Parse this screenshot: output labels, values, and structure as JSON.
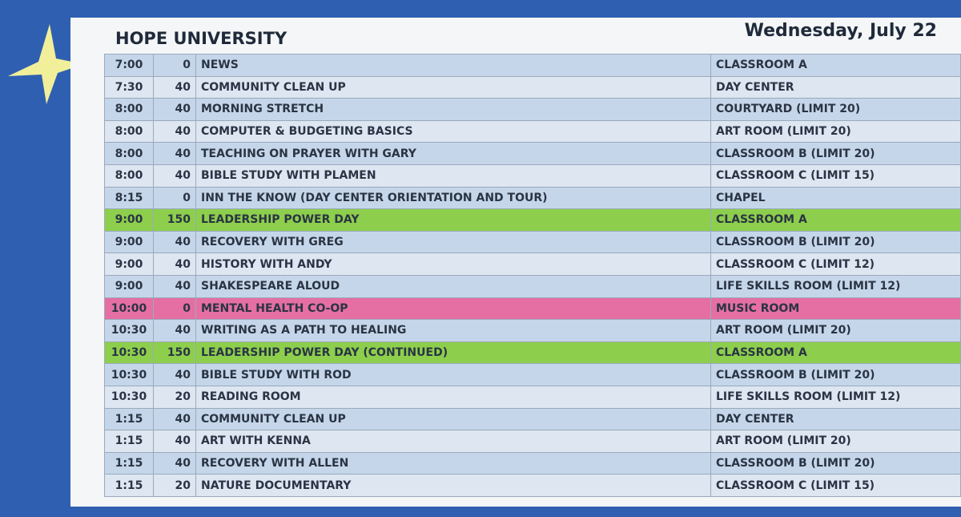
{
  "header": {
    "title": "HOPE UNIVERSITY",
    "date": "Wednesday, July 22"
  },
  "table": {
    "rows": [
      {
        "cells": [
          "7:00",
          "0",
          "NEWS",
          "CLASSROOM A"
        ]
      },
      {
        "cells": [
          "7:30",
          "40",
          "COMMUNITY CLEAN UP",
          "DAY CENTER"
        ]
      },
      {
        "cells": [
          "8:00",
          "40",
          "MORNING STRETCH",
          "COURTYARD (LIMIT 20)"
        ]
      },
      {
        "cells": [
          "8:00",
          "40",
          "COMPUTER & BUDGETING BASICS",
          "ART ROOM (LIMIT 20)"
        ]
      },
      {
        "cells": [
          "8:00",
          "40",
          "TEACHING ON PRAYER WITH GARY",
          "CLASSROOM B (LIMIT 20)"
        ]
      },
      {
        "cells": [
          "8:00",
          "40",
          "BIBLE STUDY WITH PLAMEN",
          "CLASSROOM C (LIMIT 15)"
        ]
      },
      {
        "cells": [
          "8:15",
          "0",
          "INN THE KNOW (DAY CENTER ORIENTATION AND TOUR)",
          "CHAPEL"
        ]
      },
      {
        "cells": [
          "9:00",
          "150",
          "LEADERSHIP POWER DAY",
          "CLASSROOM A"
        ],
        "color": "#8dcf4c"
      },
      {
        "cells": [
          "9:00",
          "40",
          "RECOVERY WITH GREG",
          "CLASSROOM B (LIMIT 20)"
        ]
      },
      {
        "cells": [
          "9:00",
          "40",
          "HISTORY WITH ANDY",
          "CLASSROOM C (LIMIT 12)"
        ]
      },
      {
        "cells": [
          "9:00",
          "40",
          "SHAKESPEARE ALOUD",
          "LIFE SKILLS ROOM (LIMIT 12)"
        ]
      },
      {
        "cells": [
          "10:00",
          "0",
          "MENTAL HEALTH CO-OP",
          "MUSIC ROOM"
        ],
        "color": "#e56fa3"
      },
      {
        "cells": [
          "10:30",
          "40",
          "WRITING AS A PATH TO HEALING",
          "ART ROOM (LIMIT 20)"
        ]
      },
      {
        "cells": [
          "10:30",
          "150",
          "LEADERSHIP POWER DAY (CONTINUED)",
          "CLASSROOM A"
        ],
        "color": "#8dcf4c"
      },
      {
        "cells": [
          "10:30",
          "40",
          "BIBLE STUDY WITH ROD",
          "CLASSROOM B (LIMIT 20)"
        ]
      },
      {
        "cells": [
          "10:30",
          "20",
          "READING ROOM",
          "LIFE SKILLS ROOM (LIMIT 12)"
        ]
      },
      {
        "cells": [
          "1:15",
          "40",
          "COMMUNITY CLEAN UP",
          "DAY CENTER"
        ]
      },
      {
        "cells": [
          "1:15",
          "40",
          "ART WITH KENNA",
          "ART ROOM (LIMIT 20)"
        ]
      },
      {
        "cells": [
          "1:15",
          "40",
          "RECOVERY WITH ALLEN",
          "CLASSROOM B (LIMIT 20)"
        ]
      },
      {
        "cells": [
          "1:15",
          "20",
          "NATURE DOCUMENTARY",
          "CLASSROOM C (LIMIT 15)"
        ]
      }
    ]
  }
}
